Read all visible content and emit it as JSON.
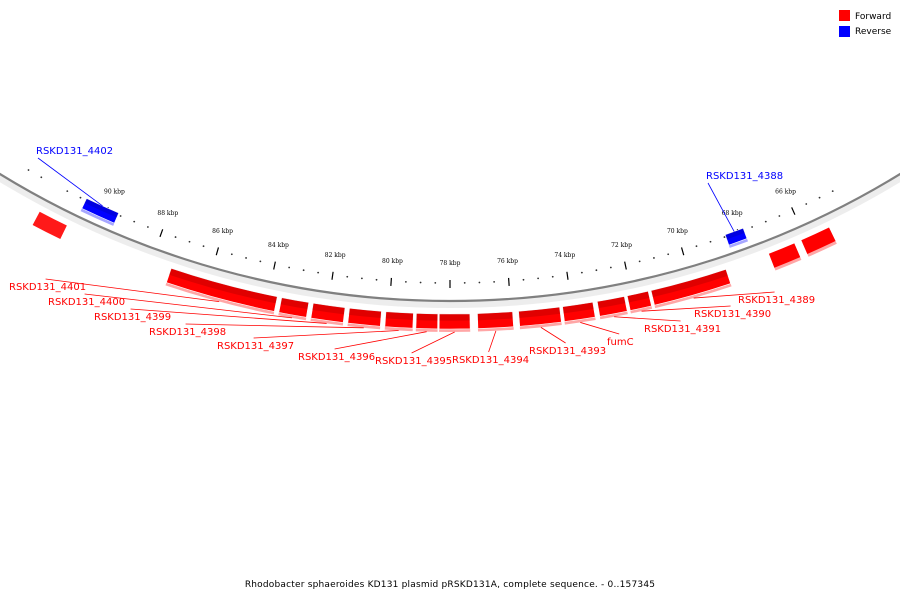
{
  "legend": {
    "forward": {
      "label": "Forward",
      "color": "#ff0000"
    },
    "reverse": {
      "label": "Reverse",
      "color": "#0000ff"
    }
  },
  "caption": "Rhodobacter sphaeroides KD131 plasmid pRSKD131A, complete sequence. - 0..157345",
  "backbone_color": "#808080",
  "scale_ticks": [
    {
      "label": "90 kbp",
      "kbp": 90
    },
    {
      "label": "88 kbp",
      "kbp": 88
    },
    {
      "label": "86 kbp",
      "kbp": 86
    },
    {
      "label": "84 kbp",
      "kbp": 84
    },
    {
      "label": "82 kbp",
      "kbp": 82
    },
    {
      "label": "80 kbp",
      "kbp": 80
    },
    {
      "label": "78 kbp",
      "kbp": 78
    },
    {
      "label": "76 kbp",
      "kbp": 76
    },
    {
      "label": "74 kbp",
      "kbp": 74
    },
    {
      "label": "72 kbp",
      "kbp": 72
    },
    {
      "label": "70 kbp",
      "kbp": 70
    },
    {
      "label": "68 kbp",
      "kbp": 68
    },
    {
      "label": "66 kbp",
      "kbp": 66
    }
  ],
  "genes": [
    {
      "name": "RSKD131_4402",
      "strand": "reverse"
    },
    {
      "name": "RSKD131_4401",
      "strand": "forward"
    },
    {
      "name": "RSKD131_4400",
      "strand": "forward"
    },
    {
      "name": "RSKD131_4399",
      "strand": "forward"
    },
    {
      "name": "RSKD131_4398",
      "strand": "forward"
    },
    {
      "name": "RSKD131_4397",
      "strand": "forward"
    },
    {
      "name": "RSKD131_4396",
      "strand": "forward"
    },
    {
      "name": "RSKD131_4395",
      "strand": "forward"
    },
    {
      "name": "RSKD131_4394",
      "strand": "forward"
    },
    {
      "name": "RSKD131_4393",
      "strand": "forward"
    },
    {
      "name": "fumC",
      "strand": "forward"
    },
    {
      "name": "RSKD131_4391",
      "strand": "forward"
    },
    {
      "name": "RSKD131_4390",
      "strand": "forward"
    },
    {
      "name": "RSKD131_4389",
      "strand": "forward"
    },
    {
      "name": "RSKD131_4388",
      "strand": "reverse"
    }
  ]
}
